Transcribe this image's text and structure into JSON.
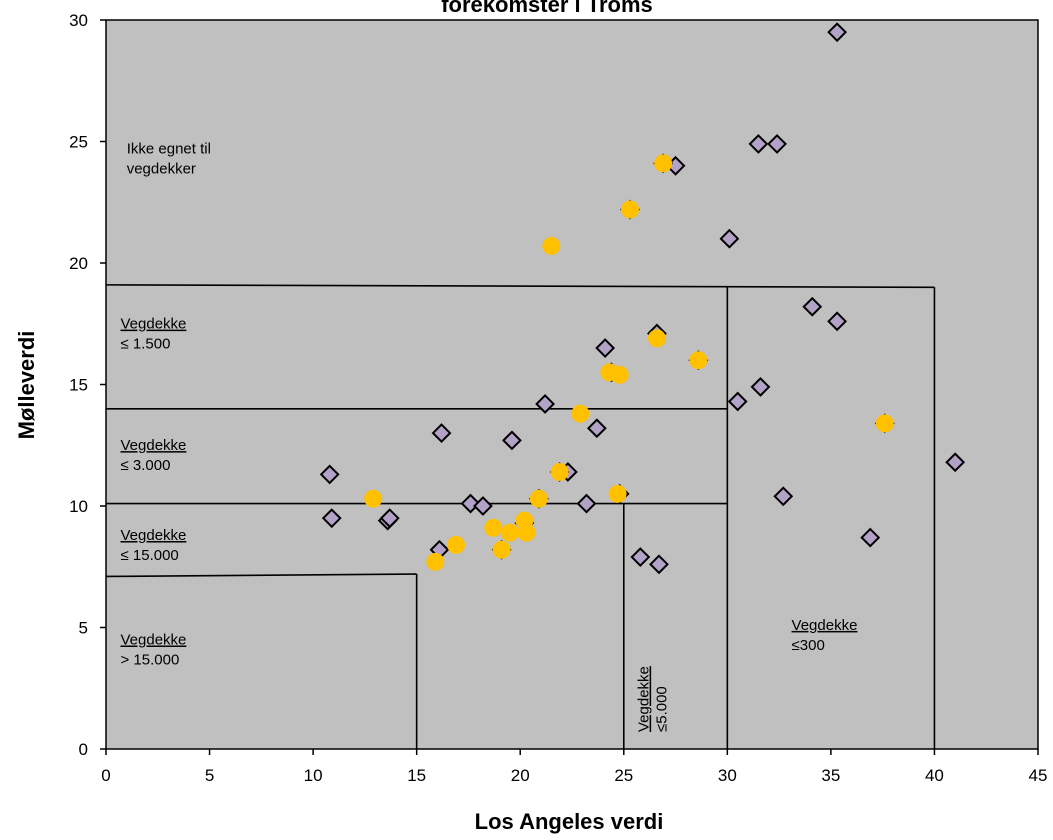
{
  "chart_data": {
    "type": "scatter",
    "title": "forekomster i Troms",
    "xlabel": "Los Angeles verdi",
    "ylabel": "Mølleverdi",
    "xlim": [
      0,
      45
    ],
    "ylim": [
      0,
      30
    ],
    "xticks": [
      "0",
      "5",
      "10",
      "15",
      "20",
      "25",
      "30",
      "35",
      "40",
      "45"
    ],
    "yticks": [
      "0",
      "5",
      "10",
      "15",
      "20",
      "25",
      "30"
    ],
    "grid": false,
    "plot_background": "#c0c0c0",
    "series": [
      {
        "marker": "diamond",
        "color": "#b3a2c7",
        "edge_color": "#000000",
        "points": [
          [
            10.8,
            11.3
          ],
          [
            10.9,
            9.5
          ],
          [
            13.6,
            9.4
          ],
          [
            13.7,
            9.5
          ],
          [
            16.2,
            13.0
          ],
          [
            16.1,
            8.2
          ],
          [
            17.6,
            10.1
          ],
          [
            18.2,
            10.0
          ],
          [
            19.6,
            12.7
          ],
          [
            21.2,
            14.2
          ],
          [
            22.3,
            11.4
          ],
          [
            23.2,
            10.1
          ],
          [
            23.7,
            13.2
          ],
          [
            24.1,
            16.5
          ],
          [
            24.4,
            15.5
          ],
          [
            25.8,
            7.9
          ],
          [
            26.7,
            7.6
          ],
          [
            26.6,
            17.1
          ],
          [
            27.5,
            24.0
          ],
          [
            30.1,
            21.0
          ],
          [
            30.5,
            14.3
          ],
          [
            31.5,
            24.9
          ],
          [
            32.4,
            24.9
          ],
          [
            31.6,
            14.9
          ],
          [
            32.7,
            10.4
          ],
          [
            34.1,
            18.2
          ],
          [
            35.3,
            17.6
          ],
          [
            35.3,
            29.5
          ],
          [
            36.9,
            8.7
          ],
          [
            41.0,
            11.8
          ],
          [
            24.8,
            10.5
          ],
          [
            26.9,
            24.1
          ],
          [
            25.3,
            22.2
          ],
          [
            20.2,
            9.3
          ],
          [
            20.9,
            10.3
          ],
          [
            19.1,
            8.2
          ],
          [
            21.9,
            11.4
          ],
          [
            28.6,
            16.0
          ],
          [
            37.6,
            13.4
          ]
        ]
      },
      {
        "marker": "circle",
        "color": "#ffc000",
        "points": [
          [
            12.9,
            10.3
          ],
          [
            15.9,
            7.7
          ],
          [
            16.9,
            8.4
          ],
          [
            18.7,
            9.1
          ],
          [
            19.1,
            8.2
          ],
          [
            19.5,
            8.9
          ],
          [
            20.2,
            9.4
          ],
          [
            20.3,
            8.9
          ],
          [
            20.9,
            10.3
          ],
          [
            21.5,
            20.7
          ],
          [
            21.9,
            11.4
          ],
          [
            22.9,
            13.8
          ],
          [
            24.3,
            15.5
          ],
          [
            24.8,
            15.4
          ],
          [
            24.7,
            10.5
          ],
          [
            25.3,
            22.2
          ],
          [
            26.6,
            16.9
          ],
          [
            26.9,
            24.1
          ],
          [
            28.6,
            16.0
          ],
          [
            37.6,
            13.4
          ]
        ]
      }
    ],
    "boundaries": [
      [
        [
          0,
          19.1
        ],
        [
          40,
          19.0
        ]
      ],
      [
        [
          40,
          19.0
        ],
        [
          40,
          0
        ]
      ],
      [
        [
          30,
          19.0
        ],
        [
          30,
          0
        ]
      ],
      [
        [
          0,
          14.0
        ],
        [
          30,
          14.0
        ]
      ],
      [
        [
          0,
          10.1
        ],
        [
          30,
          10.1
        ]
      ],
      [
        [
          25,
          10.1
        ],
        [
          25,
          0
        ]
      ],
      [
        [
          0,
          7.1
        ],
        [
          15,
          7.2
        ]
      ],
      [
        [
          15,
          7.2
        ],
        [
          15,
          0
        ]
      ]
    ],
    "region_labels": [
      {
        "lines": [
          "Ikke egnet til",
          "vegdekker"
        ],
        "at": [
          1.0,
          24.5
        ],
        "underline_first": false
      },
      {
        "lines": [
          "Vegdekke",
          "≤ 1.500"
        ],
        "at": [
          0.7,
          17.3
        ],
        "underline_first": true
      },
      {
        "lines": [
          "Vegdekke",
          "≤ 3.000"
        ],
        "at": [
          0.7,
          12.3
        ],
        "underline_first": true
      },
      {
        "lines": [
          "Vegdekke",
          "≤ 15.000"
        ],
        "at": [
          0.7,
          8.6
        ],
        "underline_first": true
      },
      {
        "lines": [
          "Vegdekke",
          "> 15.000"
        ],
        "at": [
          0.7,
          4.3
        ],
        "underline_first": true
      },
      {
        "lines": [
          "Vegdekke",
          "≤300"
        ],
        "at": [
          33.1,
          4.9
        ],
        "underline_first": true
      },
      {
        "lines": [
          "Vegdekke",
          "≤5.000"
        ],
        "at": [
          26.2,
          0.7
        ],
        "underline_first": true,
        "rotated": true
      }
    ]
  }
}
